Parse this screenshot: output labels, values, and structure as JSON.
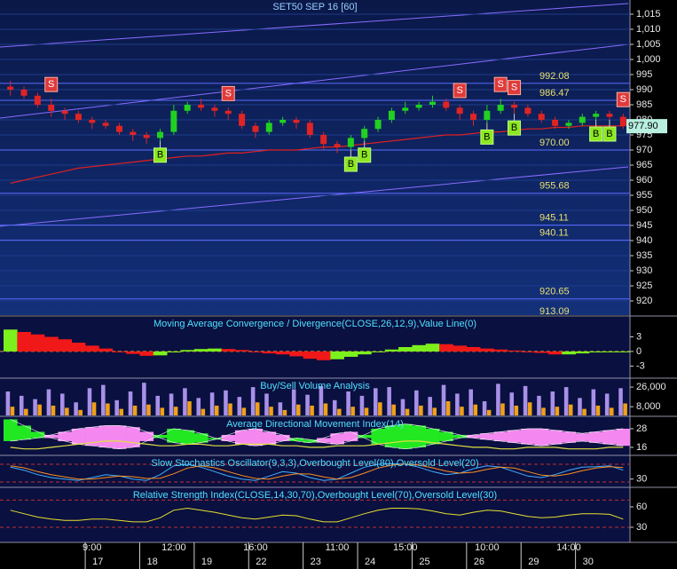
{
  "chart_data": [
    {
      "type": "candlestick",
      "title": "SET50 SEP 16  [60]",
      "categories": [
        null,
        null,
        null,
        null,
        null,
        null,
        "9:00",
        null,
        null,
        null,
        null,
        null,
        "12:00",
        null,
        null,
        null,
        null,
        null,
        "16:00",
        null,
        null,
        null,
        null,
        null,
        "11:00",
        null,
        null,
        null,
        null,
        "15:00",
        null,
        null,
        null,
        null,
        null,
        "10:00",
        null,
        null,
        null,
        null,
        null,
        "14:00",
        null,
        null,
        null,
        null
      ],
      "dates": [
        null,
        null,
        null,
        null,
        null,
        null,
        "17",
        null,
        null,
        null,
        "18",
        null,
        null,
        null,
        "19",
        null,
        null,
        null,
        "22",
        null,
        null,
        null,
        "23",
        null,
        null,
        null,
        "24",
        null,
        null,
        null,
        "25",
        null,
        null,
        null,
        "26",
        null,
        null,
        null,
        "29",
        null,
        null,
        null,
        "30",
        null,
        null,
        null
      ],
      "open": [
        991,
        990,
        988,
        985,
        983,
        982,
        980,
        979,
        978,
        976,
        975,
        974,
        976,
        983,
        985,
        984,
        983,
        982,
        978,
        976,
        979,
        980,
        979,
        975,
        972,
        971,
        974,
        977,
        980,
        983,
        984,
        985,
        986,
        984,
        982,
        980,
        983,
        985,
        984,
        982,
        980,
        978,
        979,
        981,
        982,
        981
      ],
      "high": [
        993,
        991,
        989,
        987,
        984,
        983,
        981,
        980,
        979,
        977,
        976,
        977,
        985,
        986,
        987,
        985,
        984,
        983,
        979,
        980,
        981,
        981,
        980,
        976,
        973,
        975,
        978,
        981,
        984,
        986,
        986,
        988,
        987,
        985,
        983,
        985,
        987,
        986,
        985,
        983,
        981,
        980,
        982,
        983,
        983,
        982
      ],
      "low": [
        988,
        987,
        984,
        981,
        980,
        979,
        977,
        977,
        975,
        973,
        972,
        973,
        975,
        982,
        983,
        981,
        980,
        977,
        974,
        975,
        978,
        977,
        974,
        970,
        969,
        970,
        973,
        976,
        979,
        982,
        983,
        984,
        983,
        980,
        978,
        979,
        982,
        982,
        981,
        979,
        977,
        977,
        978,
        980,
        980,
        977
      ],
      "close": [
        990,
        988,
        985,
        983,
        982,
        980,
        979,
        978,
        976,
        975,
        974,
        976,
        983,
        985,
        984,
        983,
        982,
        978,
        976,
        979,
        980,
        979,
        975,
        972,
        971,
        974,
        977,
        980,
        983,
        984,
        985,
        986,
        984,
        982,
        980,
        983,
        985,
        984,
        982,
        980,
        978,
        979,
        981,
        982,
        981,
        977.9
      ],
      "up_color": "#22d022",
      "down_color": "#e02424",
      "overlay": {
        "color": "#e02020",
        "values": [
          959,
          960,
          961,
          962,
          963,
          964,
          964.5,
          965,
          965.5,
          966,
          966.5,
          967,
          967.5,
          968,
          968,
          968.5,
          969,
          969,
          969.5,
          970,
          970,
          970,
          970.5,
          971,
          971,
          971.5,
          972,
          972.5,
          973,
          973.5,
          974,
          974.5,
          975,
          975,
          975.5,
          976,
          976,
          976.5,
          977,
          977,
          977.5,
          977.5,
          978,
          978,
          978,
          978
        ]
      },
      "sell": [
        null,
        null,
        null,
        "S",
        null,
        null,
        null,
        null,
        null,
        null,
        null,
        null,
        null,
        null,
        null,
        null,
        "S",
        null,
        null,
        null,
        null,
        null,
        null,
        null,
        null,
        null,
        null,
        null,
        null,
        null,
        null,
        null,
        null,
        "S",
        null,
        null,
        "S",
        "S",
        null,
        null,
        null,
        null,
        null,
        null,
        null,
        "S"
      ],
      "buy": [
        null,
        null,
        null,
        null,
        null,
        null,
        null,
        null,
        null,
        null,
        null,
        "B",
        null,
        null,
        null,
        null,
        null,
        null,
        null,
        null,
        null,
        null,
        null,
        null,
        null,
        "B",
        "B",
        null,
        null,
        null,
        null,
        null,
        null,
        null,
        null,
        "B",
        null,
        "B",
        null,
        null,
        null,
        null,
        null,
        "B",
        "B",
        null
      ],
      "levels": [
        992.08,
        986.47,
        {
          "value": 970,
          "label": "970.00"
        },
        955.68,
        945.11,
        940.11,
        920.65,
        913.09
      ],
      "last": {
        "value": 977.9,
        "label": "977.90"
      },
      "ylim": [
        915.3,
        1019.7
      ],
      "yticks": [
        {
          "value": 1015,
          "label": "1,015"
        },
        {
          "value": 1010,
          "label": "1,010"
        },
        {
          "value": 1005,
          "label": "1,005"
        },
        {
          "value": 1000,
          "label": "1,000"
        },
        995,
        990,
        985,
        980,
        975,
        970,
        965,
        960,
        955,
        950,
        945,
        940,
        935,
        930,
        925,
        920
      ],
      "grid": true
    },
    {
      "type": "histogram",
      "title": "Moving Average Convergence / Divergence(CLOSE,26,12,9),Value Line(0)",
      "values": [
        4.5,
        4,
        3.5,
        3,
        2.5,
        1.8,
        1.2,
        0.6,
        0,
        -0.5,
        -0.9,
        -0.8,
        -0.2,
        0.3,
        0.5,
        0.6,
        0.5,
        0.3,
        0,
        -0.4,
        -0.6,
        -1,
        -1.5,
        -1.8,
        -1.6,
        -1.1,
        -0.6,
        -0.1,
        0.4,
        0.9,
        1.3,
        1.6,
        1.5,
        1.2,
        0.9,
        0.6,
        0.4,
        0.2,
        0,
        -0.3,
        -0.6,
        -0.6,
        -0.4,
        -0.2,
        0,
        0
      ],
      "up_color": "#7cf01c",
      "down_color": "#f01818",
      "hlines": [
        0
      ],
      "ylim": [
        -5.3,
        7.1
      ],
      "yticks": [
        3,
        0,
        -3
      ]
    },
    {
      "type": "bar",
      "title": "Buy/Sell Volume Analysis",
      "series": [
        {
          "color": "#a890e8",
          "values": [
            22000,
            18000,
            15000,
            24000,
            20000,
            12000,
            25000,
            28000,
            14000,
            22000,
            30000,
            18000,
            20000,
            25000,
            16000,
            21000,
            23000,
            17000,
            26000,
            20000,
            12000,
            24000,
            19000,
            27000,
            14000,
            22000,
            18000,
            25000,
            26000,
            15000,
            23000,
            17000,
            28000,
            20000,
            24000,
            13000,
            29000,
            21000,
            27000,
            18000,
            22000,
            26000,
            16000,
            24000,
            20000,
            25000
          ]
        },
        {
          "color": "#f0a018",
          "values": [
            8000,
            6000,
            10000,
            9000,
            7000,
            5000,
            12000,
            11000,
            6000,
            9000,
            10000,
            7000,
            8000,
            13000,
            6000,
            9000,
            11000,
            7000,
            12000,
            8000,
            5000,
            10000,
            9000,
            11000,
            6000,
            8000,
            7000,
            12000,
            10000,
            6000,
            9000,
            7000,
            13000,
            8000,
            10000,
            5000,
            11000,
            9000,
            12000,
            7000,
            8000,
            10000,
            6000,
            9000,
            7000,
            11000
          ]
        }
      ],
      "ylim": [
        0,
        33400
      ],
      "yticks": [
        {
          "value": 26000,
          "label": "26,000"
        },
        {
          "value": 8000,
          "label": "8,000"
        }
      ]
    },
    {
      "type": "band",
      "title": "Average Directional Movement Index(14)",
      "series": [
        {
          "color": "#22e822",
          "values": [
            34,
            30,
            26,
            22,
            20,
            18,
            17,
            16,
            15,
            16,
            20,
            24,
            28,
            27,
            25,
            22,
            20,
            18,
            17,
            18,
            20,
            22,
            21,
            19,
            18,
            20,
            24,
            28,
            30,
            31,
            30,
            28,
            26,
            24,
            22,
            21,
            20,
            19,
            18,
            17,
            18,
            19,
            20,
            19,
            18,
            17
          ]
        },
        {
          "color": "#f488f0",
          "values": [
            20,
            21,
            22,
            24,
            26,
            28,
            29,
            30,
            30,
            29,
            26,
            22,
            19,
            18,
            19,
            21,
            24,
            27,
            28,
            26,
            24,
            20,
            19,
            22,
            25,
            26,
            22,
            18,
            16,
            15,
            16,
            18,
            20,
            22,
            24,
            25,
            26,
            27,
            28,
            28,
            27,
            26,
            25,
            26,
            27,
            28
          ]
        },
        {
          "color": "#e0e040",
          "values": [
            16,
            15,
            15,
            16,
            17,
            18,
            19,
            20,
            20,
            19,
            18,
            17,
            17,
            18,
            18,
            17,
            17,
            18,
            18,
            18,
            17,
            17,
            16,
            16,
            17,
            17,
            17,
            18,
            19,
            20,
            20,
            19,
            18,
            17,
            16,
            16,
            15,
            15,
            16,
            16,
            16,
            15,
            15,
            15,
            16,
            16
          ]
        }
      ],
      "ylim": [
        11.4,
        35.4
      ],
      "yticks": [
        28,
        16
      ]
    },
    {
      "type": "line",
      "title": "Slow Stochastics Oscillator(9,3,3),Overbought Level(80),Oversold Level(20)",
      "series": [
        {
          "color": "#40b0ff",
          "values": [
            70,
            60,
            45,
            35,
            30,
            25,
            35,
            45,
            40,
            30,
            25,
            45,
            75,
            80,
            70,
            55,
            40,
            30,
            25,
            40,
            55,
            50,
            35,
            25,
            30,
            50,
            70,
            80,
            82,
            80,
            70,
            55,
            45,
            50,
            65,
            75,
            70,
            55,
            40,
            35,
            45,
            60,
            70,
            72,
            75,
            60
          ]
        },
        {
          "color": "#ff9020",
          "values": [
            75,
            68,
            55,
            45,
            37,
            30,
            30,
            35,
            40,
            38,
            32,
            33,
            48,
            67,
            75,
            68,
            55,
            42,
            32,
            30,
            40,
            48,
            47,
            37,
            30,
            35,
            50,
            67,
            77,
            81,
            77,
            68,
            57,
            50,
            53,
            63,
            70,
            67,
            55,
            43,
            40,
            47,
            58,
            67,
            72,
            69
          ]
        }
      ],
      "hlines": [
        80,
        20
      ],
      "ylim": [
        5,
        107
      ],
      "yticks": [
        30
      ]
    },
    {
      "type": "line",
      "title": "Relative Strength Index(CLOSE,14,30,70),Overbought Level(70),Oversold Level(30)",
      "series": [
        {
          "color": "#e8e030",
          "values": [
            55,
            50,
            45,
            42,
            40,
            40,
            42,
            42,
            40,
            38,
            38,
            44,
            55,
            58,
            55,
            52,
            48,
            44,
            42,
            45,
            48,
            47,
            42,
            38,
            38,
            44,
            50,
            55,
            58,
            58,
            57,
            54,
            50,
            48,
            52,
            55,
            54,
            50,
            46,
            44,
            45,
            48,
            50,
            50,
            49,
            42
          ]
        }
      ],
      "hlines": [
        70,
        30
      ],
      "ylim": [
        9.1,
        87.4
      ],
      "yticks": [
        60,
        30
      ]
    }
  ]
}
